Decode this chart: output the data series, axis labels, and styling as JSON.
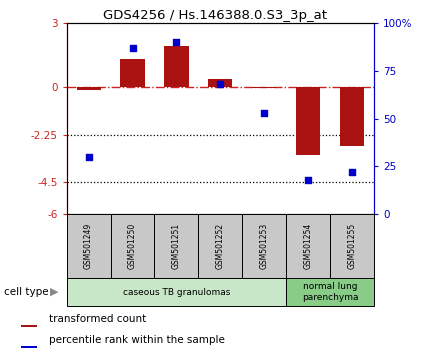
{
  "title": "GDS4256 / Hs.146388.0.S3_3p_at",
  "samples": [
    "GSM501249",
    "GSM501250",
    "GSM501251",
    "GSM501252",
    "GSM501253",
    "GSM501254",
    "GSM501255"
  ],
  "transformed_count": [
    -0.15,
    1.3,
    1.9,
    0.35,
    -0.05,
    -3.2,
    -2.8
  ],
  "percentile_rank": [
    30,
    87,
    90,
    68,
    53,
    18,
    22
  ],
  "ylim_left": [
    -6,
    3
  ],
  "ylim_right": [
    0,
    100
  ],
  "yticks_left": [
    -6,
    -4.5,
    -2.25,
    0,
    3
  ],
  "ytick_labels_left": [
    "-6",
    "-4.5",
    "-2.25",
    "0",
    "3"
  ],
  "yticks_right": [
    0,
    25,
    50,
    75,
    100
  ],
  "ytick_labels_right": [
    "0",
    "25",
    "50",
    "75",
    "100%"
  ],
  "hline_y": 0,
  "dotted_lines": [
    -2.25,
    -4.5
  ],
  "bar_color": "#aa1111",
  "dot_color": "#0000cc",
  "cell_type_groups": [
    {
      "label": "caseous TB granulomas",
      "indices": [
        0,
        1,
        2,
        3,
        4
      ],
      "color": "#c8e6c8"
    },
    {
      "label": "normal lung\nparenchyma",
      "indices": [
        5,
        6
      ],
      "color": "#88cc88"
    }
  ],
  "cell_type_label": "cell type",
  "legend_bar_label": "transformed count",
  "legend_dot_label": "percentile rank within the sample",
  "left_axis_color": "#cc2222",
  "right_axis_color": "#0000cc",
  "label_box_color": "#c8c8c8",
  "bar_width": 0.55
}
